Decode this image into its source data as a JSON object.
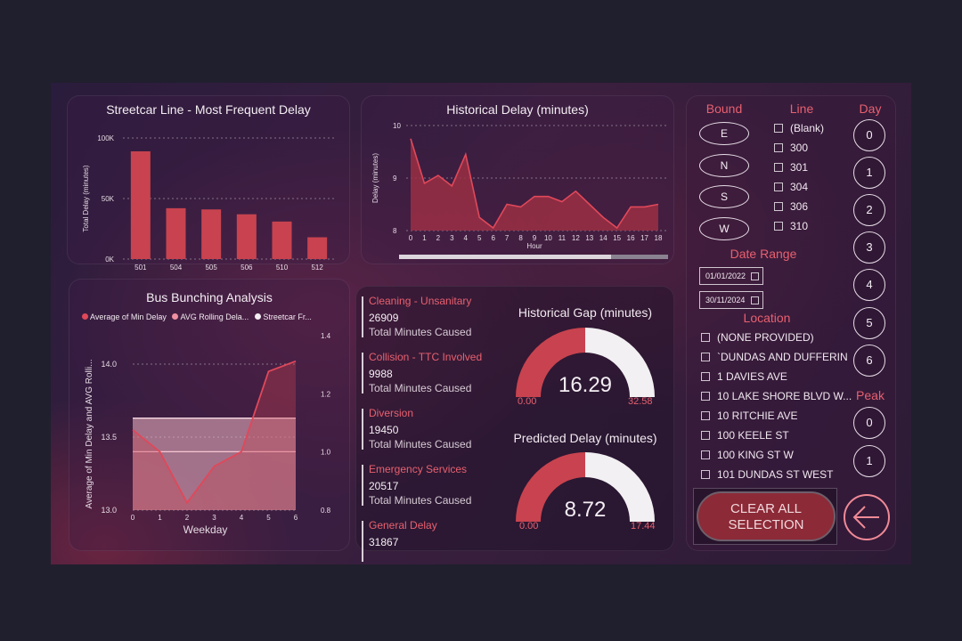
{
  "streetcar_panel": {
    "title": "Streetcar Line - Most Frequent Delay",
    "ylabel": "Total Delay (minutes)",
    "yticks": [
      "100K",
      "50K",
      "0K"
    ]
  },
  "historical_panel": {
    "title": "Historical Delay (minutes)",
    "ylabel": "Delay (minutes)",
    "xlabel": "Hour",
    "yticks": [
      "10",
      "9",
      "8"
    ]
  },
  "bunching_panel": {
    "title": "Bus Bunching Analysis",
    "legend": [
      "Average of Min Delay",
      "AVG Rolling Dela...",
      "Streetcar Fr..."
    ],
    "ylabel": "Average of Min Delay and AVG Rolli...",
    "xlabel": "Weekday",
    "yticks_left": [
      "14.0",
      "13.5",
      "13.0"
    ],
    "yticks_right": [
      "1.4",
      "1.2",
      "1.0",
      "0.8"
    ]
  },
  "incident_types": [
    {
      "name": "Cleaning - Unsanitary",
      "value": "26909",
      "sub": "Total Minutes Caused"
    },
    {
      "name": "Collision - TTC Involved",
      "value": "9988",
      "sub": "Total Minutes Caused"
    },
    {
      "name": "Diversion",
      "value": "19450",
      "sub": "Total Minutes Caused"
    },
    {
      "name": "Emergency Services",
      "value": "20517",
      "sub": "Total Minutes Caused"
    },
    {
      "name": "General Delay",
      "value": "31867",
      "sub": ""
    }
  ],
  "gauges": {
    "historical": {
      "title": "Historical Gap (minutes)",
      "value": "16.29",
      "min": "0.00",
      "max": "32.58",
      "fraction": 0.5
    },
    "predicted": {
      "title": "Predicted Delay (minutes)",
      "value": "8.72",
      "min": "0.00",
      "max": "17.44",
      "fraction": 0.5
    }
  },
  "filters": {
    "bound_title": "Bound",
    "bounds": [
      "E",
      "N",
      "S",
      "W"
    ],
    "line_title": "Line",
    "lines": [
      "(Blank)",
      "300",
      "301",
      "304",
      "306",
      "310"
    ],
    "day_title": "Day",
    "days": [
      "0",
      "1",
      "2",
      "3",
      "4",
      "5",
      "6"
    ],
    "date_range_title": "Date Range",
    "date_start": "01/01/2022",
    "date_end": "30/11/2024",
    "location_title": "Location",
    "locations": [
      "(NONE PROVIDED)",
      "`DUNDAS AND DUFFERIN",
      "1 DAVIES AVE",
      "10 LAKE SHORE BLVD W...",
      "10 RITCHIE AVE",
      "100 KEELE ST",
      "100 KING ST W",
      "101 DUNDAS ST WEST"
    ],
    "peak_title": "Peak",
    "peaks": [
      "0",
      "1"
    ],
    "clear_line1": "CLEAR ALL",
    "clear_line2": "SELECTION"
  },
  "colors": {
    "accent": "#c8434f",
    "area": "#9a2f44",
    "gauge_empty": "#f2f0f2",
    "pink_text": "#e8606f"
  },
  "icons": {
    "back": "arrow-left-circle-icon",
    "calendar": "calendar-icon"
  },
  "chart_data": [
    {
      "type": "bar",
      "title": "Streetcar Line - Most Frequent Delay",
      "xlabel": "",
      "ylabel": "Total Delay (minutes)",
      "categories": [
        "501",
        "504",
        "505",
        "506",
        "510",
        "512"
      ],
      "values": [
        89000,
        42000,
        41000,
        37000,
        31000,
        18000
      ],
      "ylim": [
        0,
        100000
      ],
      "grid": true
    },
    {
      "type": "area",
      "title": "Historical Delay (minutes)",
      "xlabel": "Hour",
      "ylabel": "Delay (minutes)",
      "x": [
        0,
        1,
        2,
        3,
        4,
        5,
        6,
        7,
        8,
        9,
        10,
        11,
        12,
        13,
        14,
        15,
        16,
        17,
        18
      ],
      "values": [
        9.75,
        8.9,
        9.05,
        8.85,
        9.45,
        8.25,
        8.05,
        8.5,
        8.45,
        8.65,
        8.65,
        8.55,
        8.75,
        8.5,
        8.25,
        8.05,
        8.45,
        8.45,
        8.5
      ],
      "ylim": [
        8,
        10
      ],
      "grid": true
    },
    {
      "type": "line",
      "title": "Bus Bunching Analysis",
      "xlabel": "Weekday",
      "ylabel": "Average of Min Delay and AVG Rolli...",
      "x": [
        0,
        1,
        2,
        3,
        4,
        5,
        6
      ],
      "series": [
        {
          "name": "Average of Min Delay",
          "values": [
            13.55,
            13.4,
            13.05,
            13.3,
            13.4,
            13.95,
            14.02
          ]
        },
        {
          "name": "AVG Rolling Dela...",
          "values": [
            13.63,
            13.63,
            13.63,
            13.63,
            13.63,
            13.63,
            13.63
          ]
        },
        {
          "name": "Streetcar Fr...",
          "values": [
            13.4,
            13.4,
            13.4,
            13.4,
            13.4,
            13.4,
            13.4
          ]
        }
      ],
      "ylim": [
        13.0,
        14.2
      ],
      "y2lim": [
        0.8,
        1.4
      ],
      "legend": "top-left"
    }
  ]
}
